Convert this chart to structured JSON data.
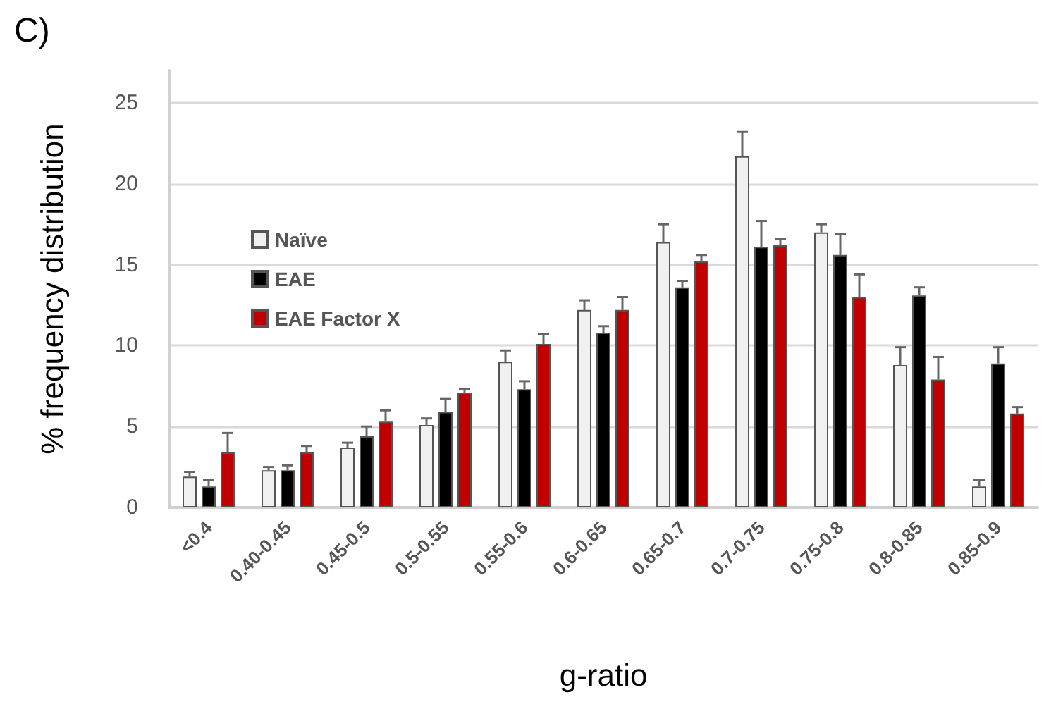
{
  "chart_data": {
    "type": "bar",
    "xlabel": "g-ratio",
    "ylabel": "% frequency distribution",
    "annotations": [
      "C)"
    ],
    "categories": [
      "<0.4",
      "0.40-0.45",
      "0.45-0.5",
      "0.5-0.55",
      "0.55-0.6",
      "0.6-0.65",
      "0.65-0.7",
      "0.7-0.75",
      "0.75-0.8",
      "0.8-0.85",
      "0.85-0.9"
    ],
    "series": [
      {
        "name": "Naïve",
        "color": "#f0f0f0",
        "values": [
          1.9,
          2.3,
          3.7,
          5.1,
          9.0,
          12.2,
          16.4,
          21.7,
          17.0,
          8.8,
          1.3
        ],
        "errors": [
          [
            1.9,
            2.2
          ],
          [
            2.3,
            2.5
          ],
          [
            3.7,
            4.0
          ],
          [
            5.1,
            5.5
          ],
          [
            9.0,
            9.7
          ],
          [
            12.2,
            12.8
          ],
          [
            16.4,
            17.5
          ],
          [
            21.7,
            23.2
          ],
          [
            17.0,
            17.5
          ],
          [
            8.8,
            9.9
          ],
          [
            1.3,
            1.7
          ]
        ]
      },
      {
        "name": "EAE",
        "color": "#000000",
        "values": [
          1.3,
          2.3,
          4.4,
          5.9,
          7.3,
          10.8,
          13.6,
          16.1,
          15.6,
          13.1,
          8.9
        ],
        "errors": [
          [
            1.3,
            1.7
          ],
          [
            2.3,
            2.6
          ],
          [
            4.4,
            5.0
          ],
          [
            5.9,
            6.7
          ],
          [
            7.3,
            7.8
          ],
          [
            10.8,
            11.2
          ],
          [
            13.6,
            14.0
          ],
          [
            16.1,
            17.7
          ],
          [
            15.6,
            16.9
          ],
          [
            13.1,
            13.6
          ],
          [
            8.9,
            9.9
          ]
        ]
      },
      {
        "name": "EAE Factor X",
        "color": "#c00000",
        "values": [
          3.4,
          3.4,
          5.3,
          7.1,
          10.1,
          12.2,
          15.2,
          16.2,
          13.0,
          7.9,
          5.8
        ],
        "errors": [
          [
            3.4,
            4.6
          ],
          [
            3.4,
            3.8
          ],
          [
            5.3,
            6.0
          ],
          [
            7.1,
            7.3
          ],
          [
            10.1,
            10.7
          ],
          [
            12.2,
            13.0
          ],
          [
            15.2,
            15.6
          ],
          [
            16.2,
            16.6
          ],
          [
            13.0,
            14.4
          ],
          [
            7.9,
            9.3
          ],
          [
            5.8,
            6.2
          ]
        ]
      }
    ],
    "ylim": [
      0,
      27
    ],
    "yticks": [
      0,
      5,
      10,
      15,
      20,
      25
    ],
    "grid": "y",
    "legend": "top left"
  }
}
